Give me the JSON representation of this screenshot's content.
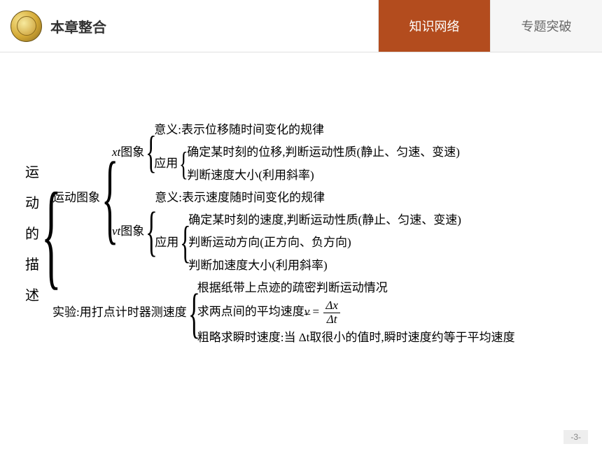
{
  "header": {
    "title": "本章整合",
    "tabs": [
      {
        "label": "知识网络",
        "active": true
      },
      {
        "label": "专题突破",
        "active": false
      }
    ]
  },
  "colors": {
    "tab_active_bg": "#b34c1e",
    "tab_active_fg": "#ffffff",
    "tab_inactive_bg": "#f6f6f6",
    "tab_inactive_fg": "#666666",
    "text": "#000000",
    "border": "#e0e0e0",
    "page_bg": "#ffffff",
    "footer_bg": "#eeeeee"
  },
  "diagram": {
    "root_label": "运动的描述",
    "section1": {
      "label": "运动图象",
      "branch_a": {
        "head": "xt图象",
        "line1": "意义:表示位移随时间变化的规律",
        "app_label": "应用",
        "app_line1": "确定某时刻的位移,判断运动性质(静止、匀速、变速)",
        "app_line2": "判断速度大小(利用斜率)"
      },
      "branch_b": {
        "head": "vt图象",
        "line1": "意义:表示速度随时间变化的规律",
        "app_label": "应用",
        "app_line1": "确定某时刻的速度,判断运动性质(静止、匀速、变速)",
        "app_line2": "判断运动方向(正方向、负方向)",
        "app_line3": "判断加速度大小(利用斜率)"
      }
    },
    "section2": {
      "label": "实验:用打点计时器测速度",
      "line1": "根据纸带上点迹的疏密判断运动情况",
      "line2_pre": "求两点间的平均速度",
      "line2_var": "v̄",
      "line2_eq": " = ",
      "frac_num": "Δx",
      "frac_den": "Δt",
      "line3": "粗略求瞬时速度:当 Δt取很小的值时,瞬时速度约等于平均速度"
    }
  },
  "pagenum": "-3-"
}
